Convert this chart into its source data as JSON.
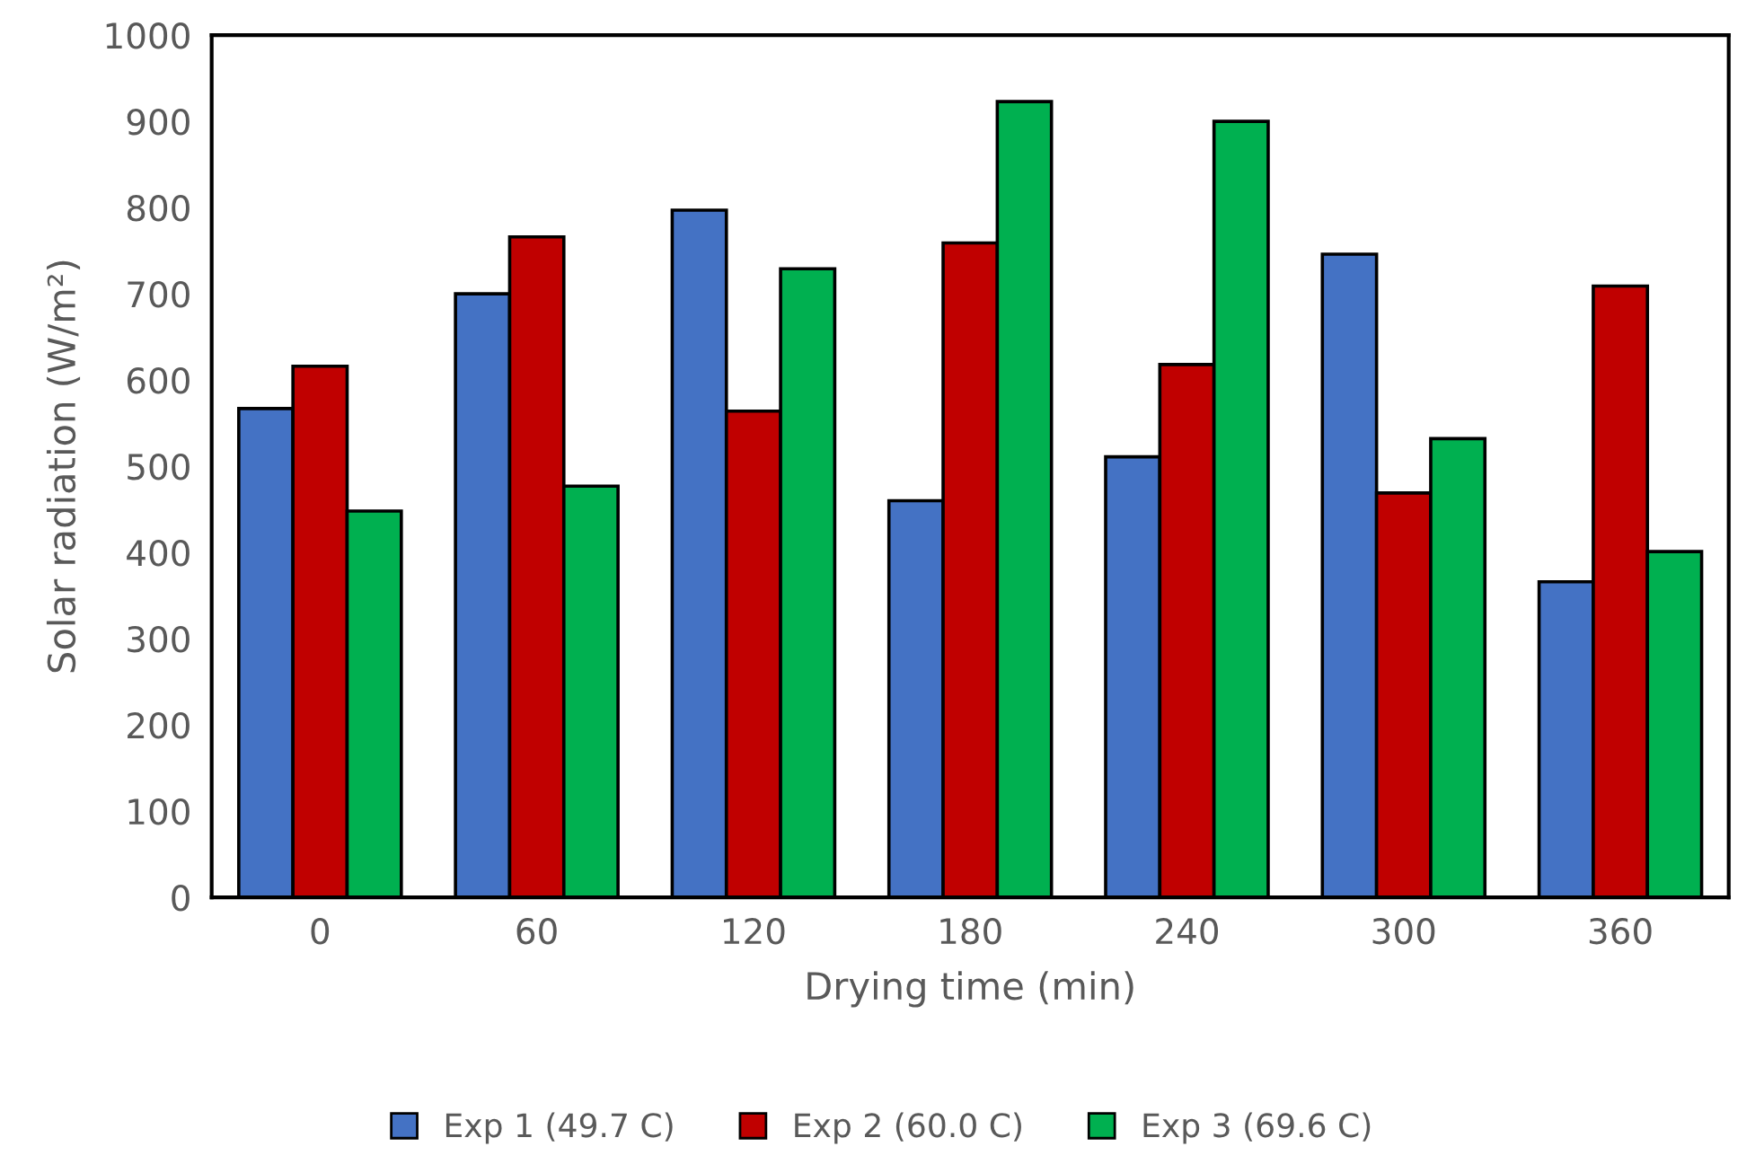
{
  "chart_data": {
    "type": "bar",
    "xlabel": "Drying time (min)",
    "ylabel": "Solar radiation (W/m²)",
    "categories": [
      "0",
      "60",
      "120",
      "180",
      "240",
      "300",
      "360"
    ],
    "series": [
      {
        "name": "Exp 1 (49.7 C)",
        "color": "#4472c4",
        "values": [
          567,
          700,
          797,
          460,
          511,
          746,
          366
        ]
      },
      {
        "name": "Exp 2 (60.0 C)",
        "color": "#c00000",
        "values": [
          616,
          766,
          564,
          759,
          618,
          469,
          709
        ]
      },
      {
        "name": "Exp 3 (69.6 C)",
        "color": "#00b050",
        "values": [
          448,
          477,
          729,
          923,
          900,
          532,
          401
        ]
      }
    ],
    "ylim": [
      0,
      1000
    ],
    "yticks": [
      0,
      100,
      200,
      300,
      400,
      500,
      600,
      700,
      800,
      900,
      1000
    ],
    "grid": false,
    "legend": "bottom"
  }
}
